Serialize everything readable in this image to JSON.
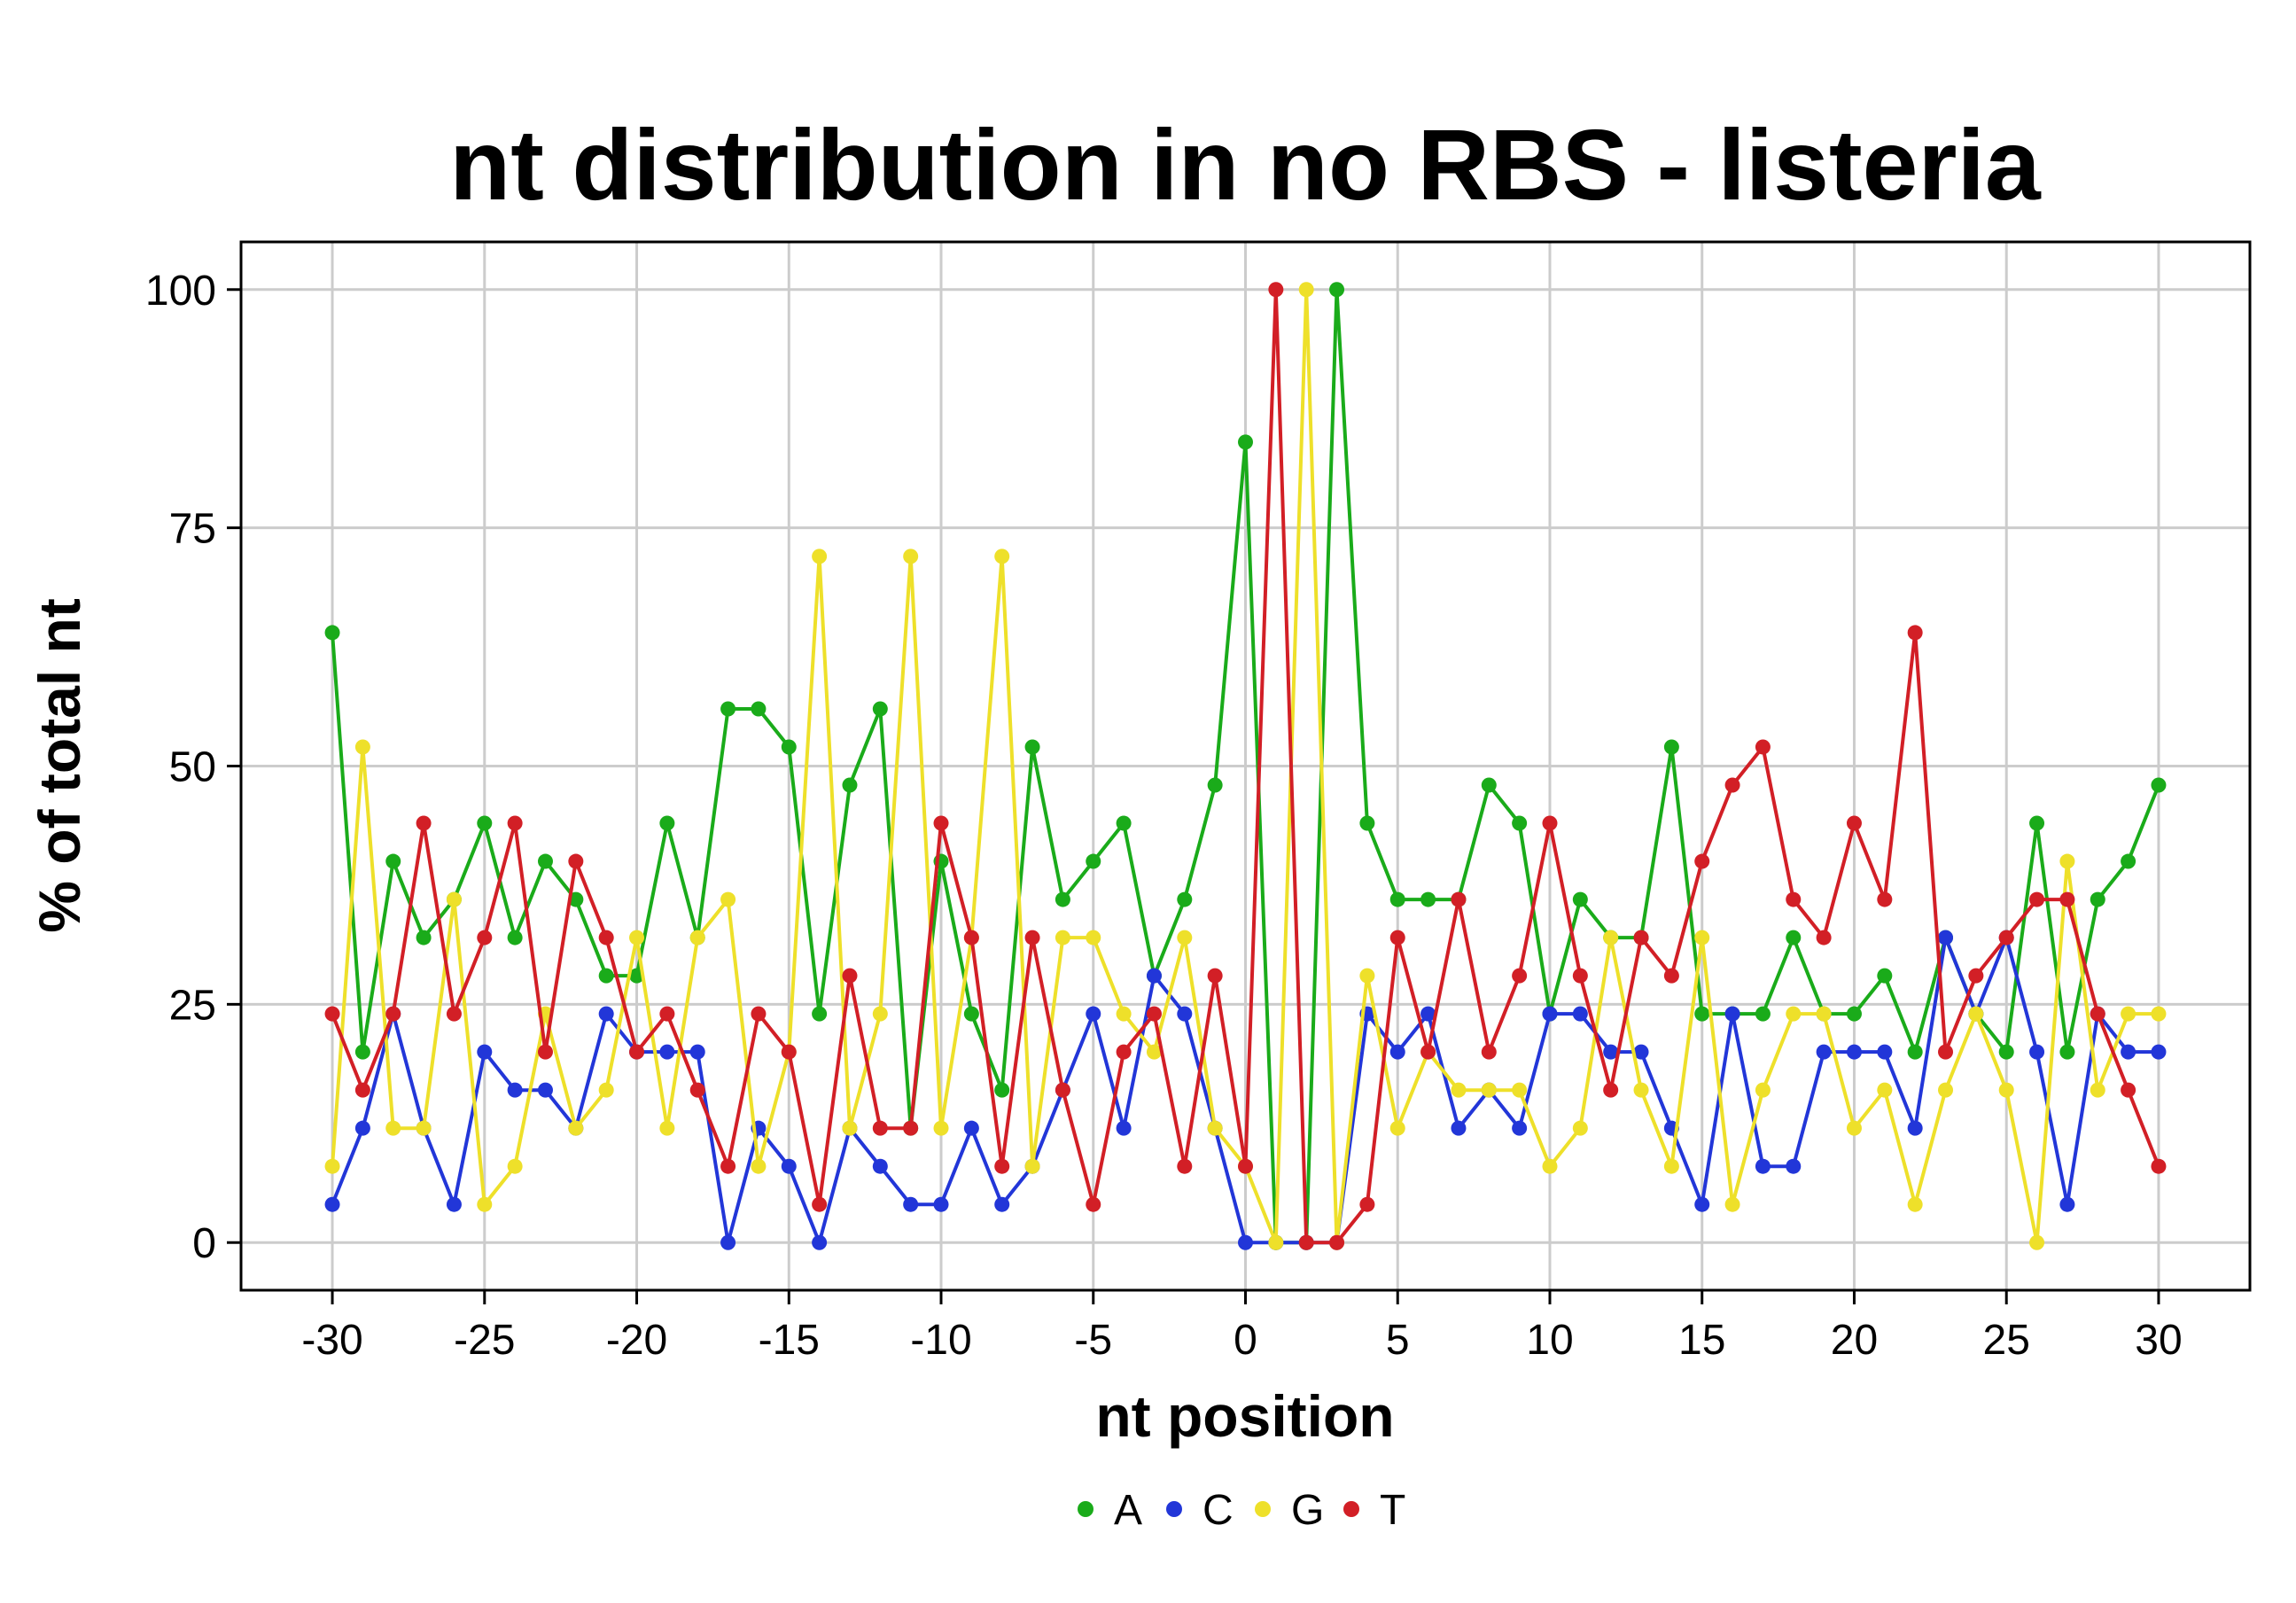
{
  "chart_data": {
    "type": "line",
    "title": "nt distribution in no RBS - listeria",
    "xlabel": "nt position",
    "ylabel": "% of total nt",
    "xlim": [
      -33,
      33
    ],
    "ylim": [
      -5,
      105
    ],
    "x_ticks": [
      "-30",
      "-25",
      "-20",
      "-15",
      "-10",
      "-5",
      "0",
      "5",
      "10",
      "15",
      "20",
      "25",
      "30"
    ],
    "y_ticks": [
      "0",
      "25",
      "50",
      "75",
      "100"
    ],
    "grid": true,
    "legend_position": "bottom",
    "x": [
      -30,
      -29,
      -28,
      -27,
      -26,
      -25,
      -24,
      -23,
      -22,
      -21,
      -20,
      -19,
      -18,
      -17,
      -16,
      -15,
      -14,
      -13,
      -12,
      -11,
      -10,
      -9,
      -8,
      -7,
      -6,
      -5,
      -4,
      -3,
      -2,
      -1,
      0,
      1,
      2,
      3,
      4,
      5,
      6,
      7,
      8,
      9,
      10,
      11,
      12,
      13,
      14,
      15,
      16,
      17,
      18,
      19,
      20,
      21,
      22,
      23,
      24,
      25,
      26,
      27,
      28,
      29,
      30
    ],
    "series": [
      {
        "name": "A",
        "color": "#1aab1a",
        "values": [
          64,
          20,
          40,
          32,
          36,
          44,
          32,
          40,
          36,
          28,
          28,
          44,
          32,
          56,
          56,
          52,
          24,
          48,
          56,
          12,
          40,
          24,
          16,
          52,
          36,
          40,
          44,
          28,
          36,
          48,
          84,
          0,
          0,
          100,
          44,
          36,
          36,
          36,
          48,
          44,
          24,
          36,
          32,
          32,
          52,
          24,
          24,
          24,
          32,
          24,
          24,
          28,
          20,
          32,
          24,
          20,
          44,
          20,
          36,
          40,
          48
        ]
      },
      {
        "name": "C",
        "color": "#2236d8",
        "values": [
          4,
          12,
          24,
          12,
          4,
          20,
          16,
          16,
          12,
          24,
          20,
          20,
          20,
          0,
          12,
          8,
          0,
          12,
          8,
          4,
          4,
          12,
          4,
          8,
          16,
          24,
          12,
          28,
          24,
          12,
          0,
          0,
          0,
          0,
          24,
          20,
          24,
          12,
          16,
          12,
          24,
          24,
          20,
          20,
          12,
          4,
          24,
          8,
          8,
          20,
          20,
          20,
          12,
          32,
          24,
          32,
          20,
          4,
          24,
          20,
          20
        ]
      },
      {
        "name": "G",
        "color": "#eee02a",
        "values": [
          8,
          52,
          12,
          12,
          36,
          4,
          8,
          24,
          12,
          16,
          32,
          12,
          32,
          36,
          8,
          20,
          72,
          12,
          24,
          72,
          12,
          32,
          72,
          8,
          32,
          32,
          24,
          20,
          32,
          12,
          8,
          0,
          100,
          0,
          28,
          12,
          20,
          16,
          16,
          16,
          8,
          12,
          32,
          16,
          8,
          32,
          4,
          16,
          24,
          24,
          12,
          16,
          4,
          16,
          24,
          16,
          0,
          40,
          16,
          24,
          24
        ]
      },
      {
        "name": "T",
        "color": "#d21f26",
        "values": [
          24,
          16,
          24,
          44,
          24,
          32,
          44,
          20,
          40,
          32,
          20,
          24,
          16,
          8,
          24,
          20,
          4,
          28,
          12,
          12,
          44,
          32,
          8,
          32,
          16,
          4,
          20,
          24,
          8,
          28,
          8,
          100,
          0,
          0,
          4,
          32,
          20,
          36,
          20,
          28,
          44,
          28,
          16,
          32,
          28,
          40,
          48,
          52,
          36,
          32,
          44,
          36,
          64,
          20,
          28,
          32,
          36,
          36,
          24,
          16,
          8
        ]
      }
    ]
  }
}
